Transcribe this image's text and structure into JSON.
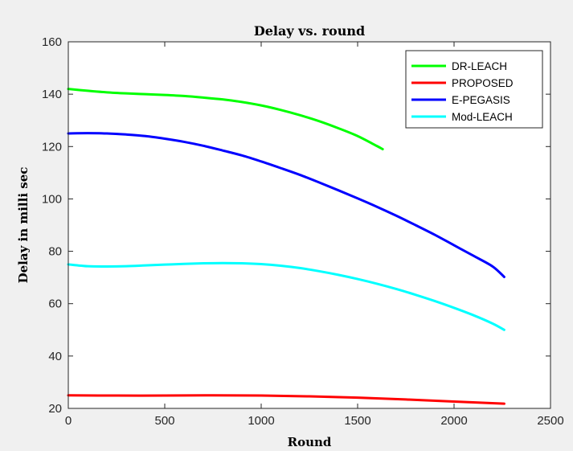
{
  "chart_data": {
    "type": "line",
    "title": "Delay vs. round",
    "xlabel": "Round",
    "ylabel": "Delay in milli sec",
    "xlim": [
      0,
      2500
    ],
    "ylim": [
      20,
      160
    ],
    "xticks": [
      0,
      500,
      1000,
      1500,
      2000,
      2500
    ],
    "yticks": [
      20,
      40,
      60,
      80,
      100,
      120,
      140,
      160
    ],
    "grid": false,
    "legend_position": "top-right",
    "series": [
      {
        "name": "DR-LEACH",
        "color": "#00ff00",
        "x": [
          0,
          100,
          200,
          300,
          400,
          500,
          600,
          700,
          800,
          900,
          1000,
          1100,
          1200,
          1300,
          1400,
          1500,
          1600,
          1630
        ],
        "y": [
          142,
          141.3,
          140.7,
          140.3,
          140,
          139.7,
          139.3,
          138.7,
          138,
          137,
          135.7,
          134,
          132,
          129.7,
          127,
          124,
          120.2,
          119
        ]
      },
      {
        "name": "PROPOSED",
        "color": "#ff0000",
        "x": [
          0,
          250,
          500,
          750,
          1000,
          1250,
          1500,
          1750,
          2000,
          2260
        ],
        "y": [
          25,
          24.9,
          24.9,
          25,
          24.9,
          24.6,
          24.1,
          23.4,
          22.6,
          21.8
        ]
      },
      {
        "name": "E-PEGASIS",
        "color": "#0000ff",
        "x": [
          0,
          100,
          200,
          300,
          400,
          500,
          600,
          700,
          800,
          900,
          1000,
          1100,
          1200,
          1300,
          1400,
          1500,
          1600,
          1700,
          1800,
          1900,
          2000,
          2100,
          2200,
          2260
        ],
        "y": [
          125,
          125.1,
          125,
          124.6,
          124,
          123,
          121.8,
          120.3,
          118.5,
          116.6,
          114.3,
          111.8,
          109.2,
          106.3,
          103.3,
          100.2,
          97,
          93.6,
          90,
          86.3,
          82.3,
          78.3,
          74.2,
          70.2
        ]
      },
      {
        "name": "Mod-LEACH",
        "color": "#00ffff",
        "x": [
          0,
          100,
          200,
          300,
          400,
          500,
          600,
          700,
          800,
          900,
          1000,
          1100,
          1200,
          1300,
          1400,
          1500,
          1600,
          1700,
          1800,
          1900,
          2000,
          2100,
          2200,
          2260
        ],
        "y": [
          75,
          74.3,
          74.2,
          74.3,
          74.6,
          74.9,
          75.2,
          75.4,
          75.5,
          75.4,
          75.1,
          74.5,
          73.6,
          72.4,
          71,
          69.4,
          67.6,
          65.6,
          63.4,
          61,
          58.4,
          55.6,
          52.4,
          50
        ]
      }
    ]
  }
}
